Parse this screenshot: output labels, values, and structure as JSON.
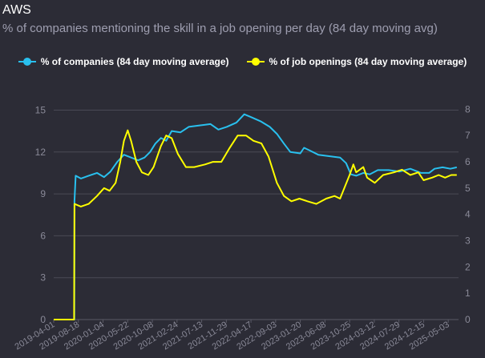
{
  "header": {
    "title": "AWS",
    "subtitle": "% of companies mentioning the skill in a job opening per day (84 day moving avg)"
  },
  "colors": {
    "background": "#2c2c36",
    "grid": "#4a4a55",
    "axis_text": "#8a8a98",
    "companies": "#29c0ee",
    "openings": "#ffff00"
  },
  "chart_data": {
    "type": "line",
    "title": "AWS",
    "subtitle": "% of companies mentioning the skill in a job opening per day (84 day moving avg)",
    "legend_position": "top-center",
    "grid": true,
    "x_ticks": [
      "2019-04-01",
      "2019-08-18",
      "2020-01-04",
      "2020-05-22",
      "2020-10-08",
      "2021-02-24",
      "2021-07-13",
      "2021-11-29",
      "2022-04-17",
      "2022-09-03",
      "2023-01-20",
      "2023-06-08",
      "2023-10-25",
      "2024-03-12",
      "2024-07-29",
      "2024-12-15",
      "2025-05-03"
    ],
    "x_range": [
      "2019-04-01",
      "2025-06-30"
    ],
    "y_left": {
      "ticks": [
        "0",
        "3",
        "6",
        "9",
        "12",
        "15"
      ],
      "range": [
        0,
        16
      ]
    },
    "y_right": {
      "ticks": [
        "0",
        "1",
        "2",
        "3",
        "4",
        "5",
        "6",
        "7",
        "8"
      ],
      "range": [
        0,
        8.5
      ]
    },
    "series": [
      {
        "name": "% of companies (84 day moving average)",
        "axis": "left",
        "points": [
          [
            "2019-04-01",
            0
          ],
          [
            "2019-07-15",
            0
          ],
          [
            "2019-07-26",
            0
          ],
          [
            "2019-07-27",
            8.5
          ],
          [
            "2019-08-03",
            10.3
          ],
          [
            "2019-09-01",
            10.1
          ],
          [
            "2019-10-15",
            10.3
          ],
          [
            "2019-12-01",
            10.5
          ],
          [
            "2020-01-10",
            10.2
          ],
          [
            "2020-02-15",
            10.6
          ],
          [
            "2020-03-25",
            11.3
          ],
          [
            "2020-05-01",
            11.8
          ],
          [
            "2020-06-10",
            11.6
          ],
          [
            "2020-07-20",
            11.4
          ],
          [
            "2020-08-25",
            11.6
          ],
          [
            "2020-09-25",
            12.0
          ],
          [
            "2020-10-25",
            12.6
          ],
          [
            "2020-11-25",
            13.0
          ],
          [
            "2020-12-25",
            12.8
          ],
          [
            "2021-01-25",
            13.5
          ],
          [
            "2021-03-15",
            13.4
          ],
          [
            "2021-05-01",
            13.8
          ],
          [
            "2021-07-01",
            13.9
          ],
          [
            "2021-09-01",
            14.0
          ],
          [
            "2021-10-15",
            13.6
          ],
          [
            "2021-12-01",
            13.8
          ],
          [
            "2022-01-25",
            14.1
          ],
          [
            "2022-03-10",
            14.7
          ],
          [
            "2022-04-17",
            14.5
          ],
          [
            "2022-06-10",
            14.2
          ],
          [
            "2022-08-01",
            13.8
          ],
          [
            "2022-09-10",
            13.3
          ],
          [
            "2022-10-20",
            12.6
          ],
          [
            "2022-11-25",
            12.0
          ],
          [
            "2023-01-20",
            11.9
          ],
          [
            "2023-02-10",
            12.3
          ],
          [
            "2023-03-15",
            12.1
          ],
          [
            "2023-05-01",
            11.8
          ],
          [
            "2023-07-01",
            11.7
          ],
          [
            "2023-09-01",
            11.6
          ],
          [
            "2023-10-05",
            11.2
          ],
          [
            "2023-11-01",
            10.4
          ],
          [
            "2023-12-01",
            10.3
          ],
          [
            "2024-01-10",
            10.5
          ],
          [
            "2024-02-15",
            10.4
          ],
          [
            "2024-04-01",
            10.7
          ],
          [
            "2024-06-01",
            10.7
          ],
          [
            "2024-08-01",
            10.6
          ],
          [
            "2024-10-01",
            10.8
          ],
          [
            "2024-12-01",
            10.5
          ],
          [
            "2025-01-15",
            10.5
          ],
          [
            "2025-02-15",
            10.8
          ],
          [
            "2025-04-01",
            10.9
          ],
          [
            "2025-05-15",
            10.8
          ],
          [
            "2025-06-20",
            10.9
          ]
        ]
      },
      {
        "name": "% of job openings (84 day moving average)",
        "axis": "right",
        "points": [
          [
            "2019-04-01",
            0
          ],
          [
            "2019-07-25",
            0
          ],
          [
            "2019-07-27",
            4.4
          ],
          [
            "2019-09-01",
            4.3
          ],
          [
            "2019-10-15",
            4.4
          ],
          [
            "2019-12-01",
            4.7
          ],
          [
            "2020-01-10",
            5.0
          ],
          [
            "2020-02-10",
            4.9
          ],
          [
            "2020-03-15",
            5.2
          ],
          [
            "2020-04-10",
            6.0
          ],
          [
            "2020-05-01",
            6.8
          ],
          [
            "2020-05-22",
            7.2
          ],
          [
            "2020-06-10",
            6.8
          ],
          [
            "2020-07-10",
            6.0
          ],
          [
            "2020-08-10",
            5.6
          ],
          [
            "2020-09-15",
            5.5
          ],
          [
            "2020-10-15",
            5.8
          ],
          [
            "2020-11-25",
            6.6
          ],
          [
            "2020-12-25",
            7.0
          ],
          [
            "2021-01-25",
            6.9
          ],
          [
            "2021-03-01",
            6.3
          ],
          [
            "2021-04-15",
            5.8
          ],
          [
            "2021-06-01",
            5.8
          ],
          [
            "2021-08-01",
            5.9
          ],
          [
            "2021-09-15",
            6.0
          ],
          [
            "2021-11-01",
            6.0
          ],
          [
            "2021-12-15",
            6.5
          ],
          [
            "2022-02-01",
            7.0
          ],
          [
            "2022-03-20",
            7.0
          ],
          [
            "2022-05-01",
            6.8
          ],
          [
            "2022-06-15",
            6.7
          ],
          [
            "2022-07-25",
            6.2
          ],
          [
            "2022-09-10",
            5.2
          ],
          [
            "2022-10-20",
            4.7
          ],
          [
            "2022-12-01",
            4.5
          ],
          [
            "2023-01-15",
            4.6
          ],
          [
            "2023-03-01",
            4.5
          ],
          [
            "2023-04-20",
            4.4
          ],
          [
            "2023-06-15",
            4.6
          ],
          [
            "2023-08-01",
            4.7
          ],
          [
            "2023-09-01",
            4.6
          ],
          [
            "2023-09-25",
            5.0
          ],
          [
            "2023-10-25",
            5.5
          ],
          [
            "2023-11-15",
            5.9
          ],
          [
            "2023-12-01",
            5.6
          ],
          [
            "2024-01-10",
            5.8
          ],
          [
            "2024-02-01",
            5.4
          ],
          [
            "2024-03-15",
            5.2
          ],
          [
            "2024-05-01",
            5.5
          ],
          [
            "2024-07-01",
            5.6
          ],
          [
            "2024-08-15",
            5.7
          ],
          [
            "2024-10-01",
            5.5
          ],
          [
            "2024-11-15",
            5.6
          ],
          [
            "2024-12-15",
            5.3
          ],
          [
            "2025-02-01",
            5.4
          ],
          [
            "2025-03-10",
            5.5
          ],
          [
            "2025-04-15",
            5.4
          ],
          [
            "2025-05-20",
            5.5
          ],
          [
            "2025-06-20",
            5.5
          ]
        ]
      }
    ]
  }
}
